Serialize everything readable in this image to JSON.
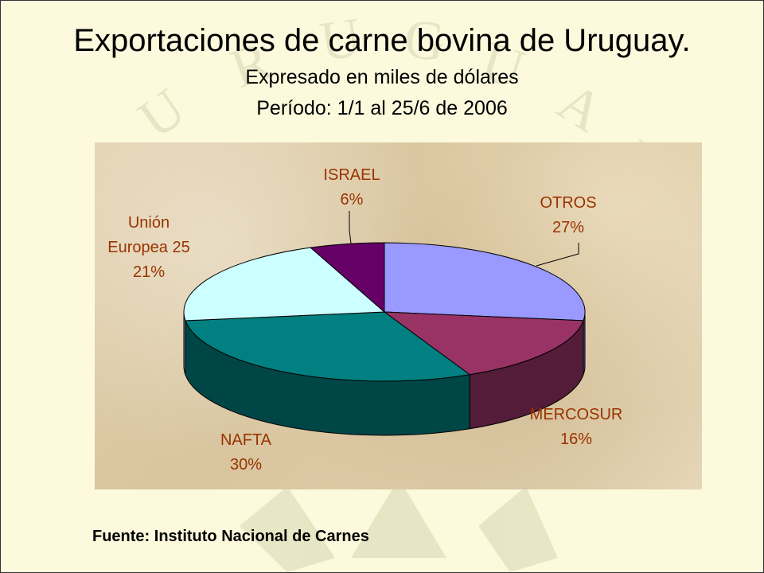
{
  "slide": {
    "title": "Exportaciones de carne bovina de Uruguay.",
    "subtitle_line1": "Expresado en miles de dólares",
    "subtitle_line2": "Período: 1/1 al 25/6 de 2006",
    "source": "Fuente: Instituto Nacional de Carnes",
    "background_color": "#fcf9dd"
  },
  "chart_data": {
    "type": "pie",
    "variant": "3d",
    "labels": [
      "OTROS",
      "MERCOSUR",
      "NAFTA",
      "Unión Europea 25",
      "ISRAEL"
    ],
    "values": [
      27,
      16,
      30,
      21,
      6
    ],
    "value_labels": [
      "27%",
      "16%",
      "30%",
      "21%",
      "6%"
    ],
    "colors": [
      "#9999ff",
      "#993366",
      "#008080",
      "#ccffff",
      "#660066"
    ],
    "label_color": "#993300"
  }
}
